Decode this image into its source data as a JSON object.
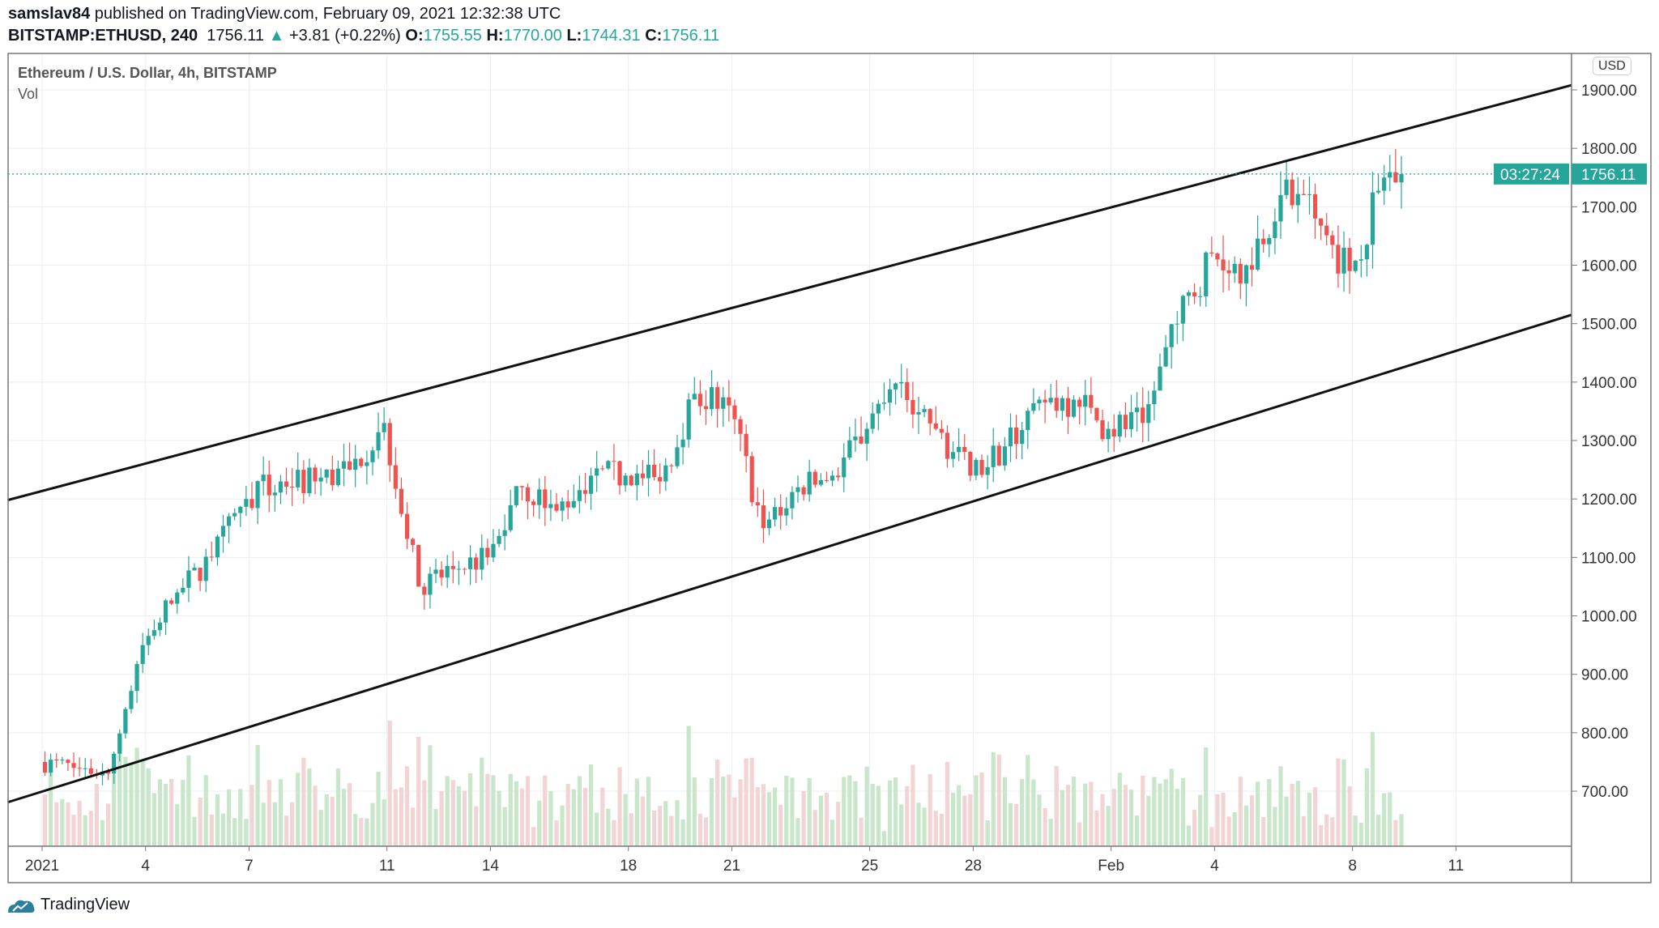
{
  "header": {
    "author": "samslav84",
    "published": "published on TradingView.com, February 09, 2021 12:32:38 UTC",
    "symbol": "BITSTAMP:ETHUSD, 240",
    "last": "1756.11",
    "change": "+3.81 (+0.22%)",
    "o_label": "O:",
    "o": "1755.55",
    "h_label": "H:",
    "h": "1770.00",
    "l_label": "L:",
    "l": "1744.31",
    "c_label": "C:",
    "c": "1756.11"
  },
  "legend": {
    "title": "Ethereum / U.S. Dollar, 4h, BITSTAMP",
    "vol": "Vol"
  },
  "currency": "USD",
  "footer": {
    "brand": "TradingView"
  },
  "colors": {
    "up": "#26a69a",
    "down": "#ef5350",
    "upVol": "#c8e6c9",
    "downVol": "#f3d4d4",
    "grid": "#e8eef2"
  },
  "chart_data": {
    "type": "candlestick",
    "title": "Ethereum / U.S. Dollar, 4h, BITSTAMP",
    "interval": "4h",
    "ylim": [
      610,
      2035
    ],
    "y_ticks": [
      "700.00",
      "800.00",
      "900.00",
      "1000.00",
      "1100.00",
      "1200.00",
      "1300.00",
      "1400.00",
      "1500.00",
      "1600.00",
      "1700.00",
      "1800.00",
      "1900.00"
    ],
    "x_ticks": [
      {
        "day": 0,
        "label": "2021"
      },
      {
        "day": 3,
        "label": "4"
      },
      {
        "day": 6,
        "label": "7"
      },
      {
        "day": 10,
        "label": "11"
      },
      {
        "day": 13,
        "label": "14"
      },
      {
        "day": 17,
        "label": "18"
      },
      {
        "day": 20,
        "label": "21"
      },
      {
        "day": 24,
        "label": "25"
      },
      {
        "day": 27,
        "label": "28"
      },
      {
        "day": 31,
        "label": "Feb"
      },
      {
        "day": 34,
        "label": "4"
      },
      {
        "day": 38,
        "label": "8"
      },
      {
        "day": 41,
        "label": "11"
      }
    ],
    "daily_closes_approx": [
      740,
      730,
      950,
      1040,
      1100,
      1200,
      1230,
      1230,
      1250,
      1330,
      1050,
      1080,
      1100,
      1220,
      1180,
      1240,
      1240,
      1230,
      1380,
      1360,
      1150,
      1220,
      1240,
      1320,
      1400,
      1320,
      1240,
      1290,
      1370,
      1370,
      1320,
      1330,
      1500,
      1620,
      1600,
      1720,
      1680,
      1590,
      1750,
      1756.11
    ],
    "start_price": 750,
    "last_price": "1756.11",
    "countdown": "03:27:24",
    "channel_lines": [
      {
        "name": "upper",
        "from": {
          "day": -1,
          "price": 1198
        },
        "to": {
          "day": 44.35,
          "price": 1908
        }
      },
      {
        "name": "lower",
        "from": {
          "day": -1,
          "price": 681
        },
        "to": {
          "day": 44.35,
          "price": 1515
        }
      }
    ]
  }
}
